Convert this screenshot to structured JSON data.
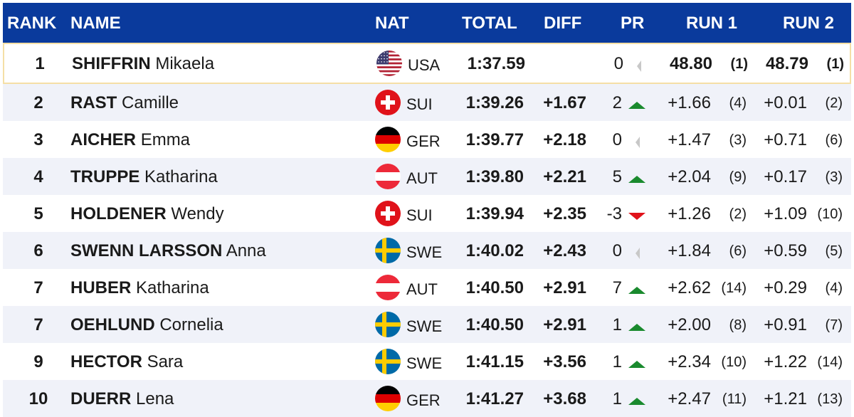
{
  "headers": {
    "rank": "RANK",
    "name": "NAME",
    "nat": "NAT",
    "total": "TOTAL",
    "diff": "DIFF",
    "pr": "PR",
    "run1": "RUN 1",
    "run2": "RUN 2"
  },
  "colors": {
    "header_bg": "#0a3a9c",
    "arrow_up": "#1a8a2e",
    "arrow_down": "#e0121a",
    "arrow_neutral": "#c8c8c8"
  },
  "rows": [
    {
      "rank": "1",
      "last": "SHIFFRIN",
      "first": "Mikaela",
      "flag": "usa-flag-icon",
      "nat": "USA",
      "total": "1:37.59",
      "diff": "",
      "pr": "0",
      "trend": "neutral",
      "run1": "48.80",
      "run1_rank": "(1)",
      "run2": "48.79",
      "run2_rank": "(1)"
    },
    {
      "rank": "2",
      "last": "RAST",
      "first": "Camille",
      "flag": "sui-flag-icon",
      "nat": "SUI",
      "total": "1:39.26",
      "diff": "+1.67",
      "pr": "2",
      "trend": "up",
      "run1": "+1.66",
      "run1_rank": "(4)",
      "run2": "+0.01",
      "run2_rank": "(2)"
    },
    {
      "rank": "3",
      "last": "AICHER",
      "first": "Emma",
      "flag": "ger-flag-icon",
      "nat": "GER",
      "total": "1:39.77",
      "diff": "+2.18",
      "pr": "0",
      "trend": "neutral",
      "run1": "+1.47",
      "run1_rank": "(3)",
      "run2": "+0.71",
      "run2_rank": "(6)"
    },
    {
      "rank": "4",
      "last": "TRUPPE",
      "first": "Katharina",
      "flag": "aut-flag-icon",
      "nat": "AUT",
      "total": "1:39.80",
      "diff": "+2.21",
      "pr": "5",
      "trend": "up",
      "run1": "+2.04",
      "run1_rank": "(9)",
      "run2": "+0.17",
      "run2_rank": "(3)"
    },
    {
      "rank": "5",
      "last": "HOLDENER",
      "first": "Wendy",
      "flag": "sui-flag-icon",
      "nat": "SUI",
      "total": "1:39.94",
      "diff": "+2.35",
      "pr": "-3",
      "trend": "down",
      "run1": "+1.26",
      "run1_rank": "(2)",
      "run2": "+1.09",
      "run2_rank": "(10)"
    },
    {
      "rank": "6",
      "last": "SWENN LARSSON",
      "first": "Anna",
      "flag": "swe-flag-icon",
      "nat": "SWE",
      "total": "1:40.02",
      "diff": "+2.43",
      "pr": "0",
      "trend": "neutral",
      "run1": "+1.84",
      "run1_rank": "(6)",
      "run2": "+0.59",
      "run2_rank": "(5)"
    },
    {
      "rank": "7",
      "last": "HUBER",
      "first": "Katharina",
      "flag": "aut-flag-icon",
      "nat": "AUT",
      "total": "1:40.50",
      "diff": "+2.91",
      "pr": "7",
      "trend": "up",
      "run1": "+2.62",
      "run1_rank": "(14)",
      "run2": "+0.29",
      "run2_rank": "(4)"
    },
    {
      "rank": "7",
      "last": "OEHLUND",
      "first": "Cornelia",
      "flag": "swe-flag-icon",
      "nat": "SWE",
      "total": "1:40.50",
      "diff": "+2.91",
      "pr": "1",
      "trend": "up",
      "run1": "+2.00",
      "run1_rank": "(8)",
      "run2": "+0.91",
      "run2_rank": "(7)"
    },
    {
      "rank": "9",
      "last": "HECTOR",
      "first": "Sara",
      "flag": "swe-flag-icon",
      "nat": "SWE",
      "total": "1:41.15",
      "diff": "+3.56",
      "pr": "1",
      "trend": "up",
      "run1": "+2.34",
      "run1_rank": "(10)",
      "run2": "+1.22",
      "run2_rank": "(14)"
    },
    {
      "rank": "10",
      "last": "DUERR",
      "first": "Lena",
      "flag": "ger-flag-icon",
      "nat": "GER",
      "total": "1:41.27",
      "diff": "+3.68",
      "pr": "1",
      "trend": "up",
      "run1": "+2.47",
      "run1_rank": "(11)",
      "run2": "+1.21",
      "run2_rank": "(13)"
    }
  ]
}
